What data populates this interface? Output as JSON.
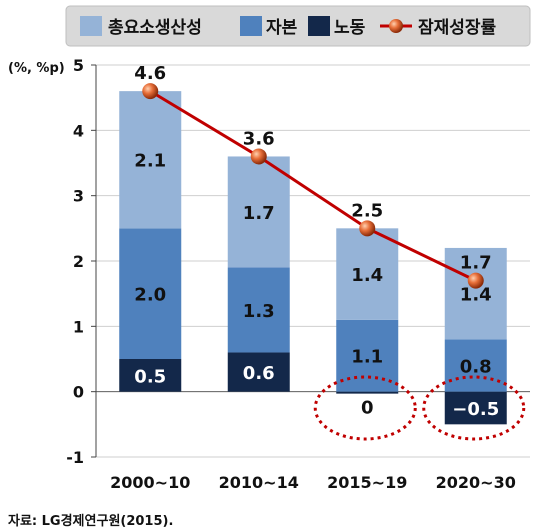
{
  "chart_data": {
    "type": "bar",
    "stacked": true,
    "categories": [
      "2000~10",
      "2010~14",
      "2015~19",
      "2020~30"
    ],
    "series": [
      {
        "name": "노동",
        "values": [
          0.5,
          0.6,
          -0.03,
          -0.5
        ],
        "labels": [
          "0.5",
          "0.6",
          "0",
          "−0.5"
        ],
        "color": "#13284a"
      },
      {
        "name": "자본",
        "values": [
          2.0,
          1.3,
          1.1,
          0.8
        ],
        "labels": [
          "2.0",
          "1.3",
          "1.1",
          "0.8"
        ],
        "color": "#4f81bd"
      },
      {
        "name": "총요소생산성",
        "values": [
          2.1,
          1.7,
          1.4,
          1.4
        ],
        "labels": [
          "2.1",
          "1.7",
          "1.4",
          "1.4"
        ],
        "color": "#95b3d7"
      }
    ],
    "line_series": {
      "name": "잠재성장률",
      "values": [
        4.6,
        3.6,
        2.5,
        1.7
      ],
      "labels": [
        "4.6",
        "3.6",
        "2.5",
        "1.7"
      ],
      "color": "#c00000"
    },
    "ylabel": "(%, %p)",
    "ylim": [
      -1,
      5
    ],
    "yticks": [
      "-1",
      "0",
      "1",
      "2",
      "3",
      "4",
      "5"
    ],
    "grid": true,
    "legend_position": "top",
    "highlighted_categories": [
      "2015~19",
      "2020~30"
    ]
  },
  "source": "자료: LG경제연구원(2015)."
}
